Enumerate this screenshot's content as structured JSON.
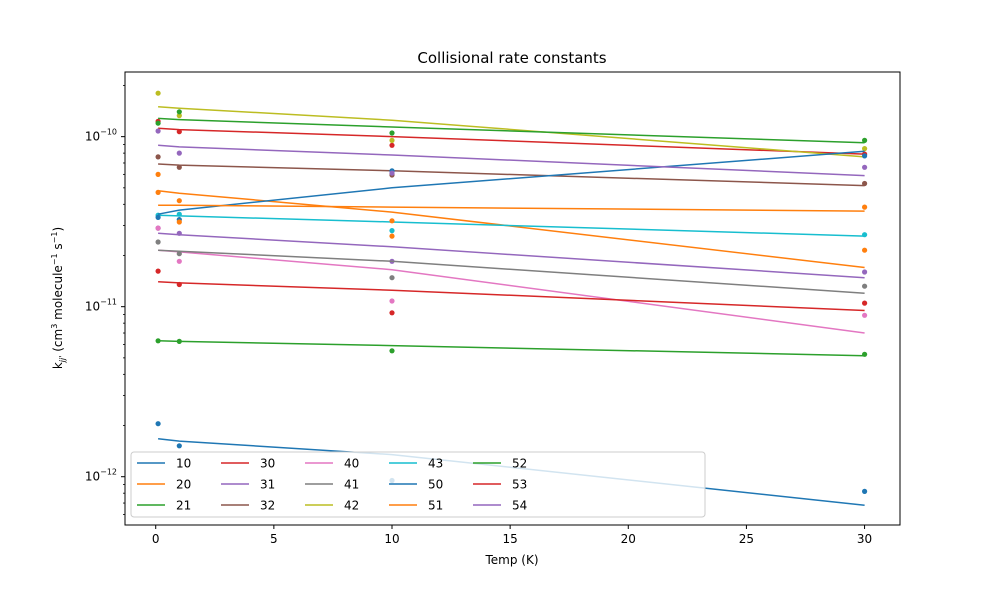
{
  "chart_data": {
    "type": "line",
    "title": "Collisional rate constants",
    "xlabel": "Temp (K)",
    "ylabel": {
      "prefix": "k",
      "sub": "jj'",
      "unit": " (cm",
      "exp1": "3",
      "mid": " molecule",
      "exp2": "−1",
      "mid2": " s",
      "exp3": "−1",
      "end": ")"
    },
    "xlim": [
      -1.3,
      31.5
    ],
    "ylim": [
      5.2e-13,
      2.4e-10
    ],
    "yscale": "log",
    "grid": false,
    "legend_position": "lower-left",
    "legend_columns": 7,
    "x_ticks": [
      "0",
      "5",
      "10",
      "15",
      "20",
      "25",
      "30"
    ],
    "y_ticks": [
      {
        "value": 1e-12,
        "base": "10",
        "exp": "−12"
      },
      {
        "value": 1e-11,
        "base": "10",
        "exp": "−11"
      },
      {
        "value": 1e-10,
        "base": "10",
        "exp": "−10"
      }
    ],
    "point_x": [
      0.1,
      1,
      10,
      30
    ],
    "series": [
      {
        "name": "10",
        "color": "#1f77b4",
        "points": [
          2.05e-12,
          1.52e-12,
          9.5e-13,
          8.2e-13
        ],
        "fit": [
          1.67e-12,
          1.62e-12,
          1.35e-12,
          6.8e-13
        ]
      },
      {
        "name": "20",
        "color": "#ff7f0e",
        "points": [
          4.7e-11,
          4.2e-11,
          2.6e-11,
          2.15e-11
        ],
        "fit": [
          4.8e-11,
          4.65e-11,
          3.6e-11,
          1.7e-11
        ]
      },
      {
        "name": "21",
        "color": "#2ca02c",
        "points": [
          6.3e-12,
          6.25e-12,
          5.5e-12,
          5.25e-12
        ],
        "fit": [
          6.3e-12,
          6.25e-12,
          5.9e-12,
          5.15e-12
        ]
      },
      {
        "name": "30",
        "color": "#d62728",
        "points": [
          1.23e-10,
          1.07e-10,
          8.9e-11,
          7.9e-11
        ],
        "fit": [
          1.12e-10,
          1.1e-10,
          1e-10,
          7.9e-11
        ]
      },
      {
        "name": "31",
        "color": "#9467bd",
        "points": [
          2.9e-11,
          2.7e-11,
          1.85e-11,
          1.6e-11
        ],
        "fit": [
          2.7e-11,
          2.65e-11,
          2.25e-11,
          1.48e-11
        ]
      },
      {
        "name": "32",
        "color": "#8c564b",
        "points": [
          7.6e-11,
          6.6e-11,
          5.95e-11,
          5.3e-11
        ],
        "fit": [
          6.9e-11,
          6.8e-11,
          6.3e-11,
          5.15e-11
        ]
      },
      {
        "name": "40",
        "color": "#e377c2",
        "points": [
          2.9e-11,
          1.85e-11,
          1.08e-11,
          8.9e-12
        ],
        "fit": [
          2.15e-11,
          2.1e-11,
          1.65e-11,
          7e-12
        ]
      },
      {
        "name": "41",
        "color": "#7f7f7f",
        "points": [
          2.4e-11,
          2.05e-11,
          1.48e-11,
          1.32e-11
        ],
        "fit": [
          2.15e-11,
          2.12e-11,
          1.85e-11,
          1.2e-11
        ]
      },
      {
        "name": "42",
        "color": "#bcbd22",
        "points": [
          1.8e-10,
          1.33e-10,
          9.5e-11,
          8.5e-11
        ],
        "fit": [
          1.5e-10,
          1.47e-10,
          1.25e-10,
          7.6e-11
        ]
      },
      {
        "name": "43",
        "color": "#17becf",
        "points": [
          3.45e-11,
          3.5e-11,
          2.8e-11,
          2.65e-11
        ],
        "fit": [
          3.45e-11,
          3.42e-11,
          3.15e-11,
          2.6e-11
        ]
      },
      {
        "name": "50",
        "color": "#1f77b4",
        "points": [
          3.35e-11,
          3.25e-11,
          6.3e-11,
          7.7e-11
        ],
        "fit": [
          3.5e-11,
          3.7e-11,
          5e-11,
          8.2e-11
        ]
      },
      {
        "name": "51",
        "color": "#ff7f0e",
        "points": [
          6e-11,
          3.15e-11,
          3.2e-11,
          3.85e-11
        ],
        "fit": [
          3.95e-11,
          3.95e-11,
          3.85e-11,
          3.65e-11
        ]
      },
      {
        "name": "52",
        "color": "#2ca02c",
        "points": [
          1.2e-10,
          1.4e-10,
          1.05e-10,
          9.5e-11
        ],
        "fit": [
          1.28e-10,
          1.26e-10,
          1.14e-10,
          9.2e-11
        ]
      },
      {
        "name": "53",
        "color": "#d62728",
        "points": [
          1.62e-11,
          1.35e-11,
          9.2e-12,
          1.05e-11
        ],
        "fit": [
          1.4e-11,
          1.38e-11,
          1.25e-11,
          9.5e-12
        ]
      },
      {
        "name": "54",
        "color": "#9467bd",
        "points": [
          1.08e-10,
          8e-11,
          6.1e-11,
          6.6e-11
        ],
        "fit": [
          8.9e-11,
          8.7e-11,
          7.8e-11,
          5.9e-11
        ]
      }
    ]
  }
}
